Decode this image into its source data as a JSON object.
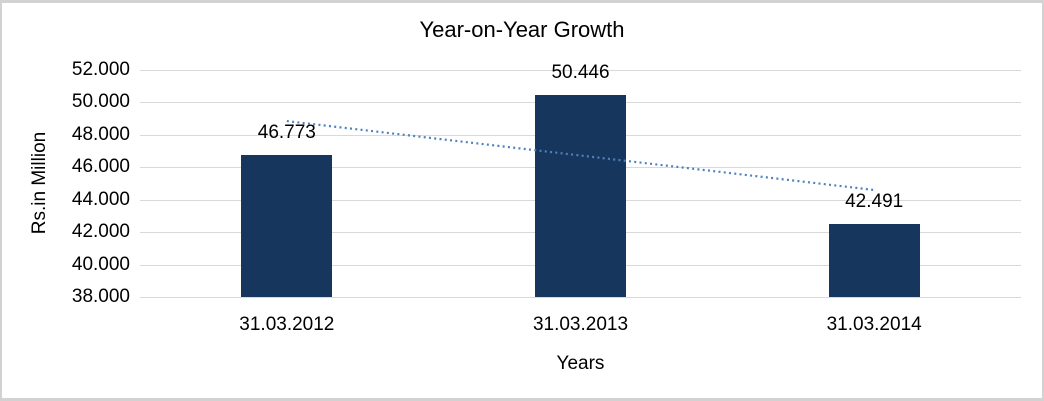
{
  "frame": {
    "background": "#ffffff",
    "border_color": "#d2d2d2"
  },
  "chart_data": {
    "type": "bar",
    "title": "Year-on-Year Growth",
    "xlabel": "Years",
    "ylabel": "Rs.in Million",
    "categories": [
      "31.03.2012",
      "31.03.2013",
      "31.03.2014"
    ],
    "values": [
      46.773,
      50.446,
      42.491
    ],
    "value_labels": [
      "46.773",
      "50.446",
      "42.491"
    ],
    "ytick_labels": [
      "52.000",
      "50.000",
      "48.000",
      "46.000",
      "44.000",
      "42.000",
      "40.000",
      "38.000"
    ],
    "ylim": [
      38.0,
      52.0
    ],
    "grid": "horizontal-only",
    "legend": "none",
    "bar_color": "#17365d",
    "gridline_color": "#d9d9d9",
    "text_color": "#000000",
    "trendline": {
      "style": "dotted",
      "color": "#4f81bd",
      "start_value": 48.85,
      "end_value": 44.6
    }
  }
}
